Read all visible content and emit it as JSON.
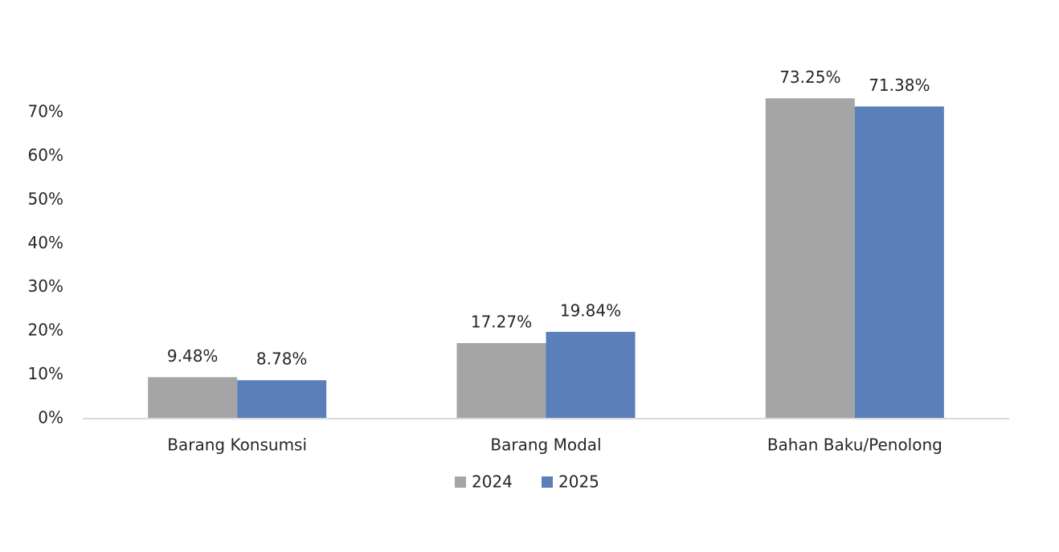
{
  "chart_data": {
    "type": "bar",
    "categories": [
      "Barang Konsumsi",
      "Barang Modal",
      "Bahan Baku/Penolong"
    ],
    "series": [
      {
        "name": "2024",
        "color": "#a5a5a5",
        "values": [
          9.48,
          17.27,
          73.25
        ],
        "value_labels": [
          "9.48%",
          "17.27%",
          "73.25%"
        ]
      },
      {
        "name": "2025",
        "color": "#5b7fb8",
        "values": [
          8.78,
          19.84,
          71.38
        ],
        "value_labels": [
          "8.78%",
          "19.84%",
          "71.38%"
        ]
      }
    ],
    "ylim": [
      0,
      80
    ],
    "yticks": [
      {
        "value": 0,
        "label": "0%"
      },
      {
        "value": 10,
        "label": "10%"
      },
      {
        "value": 20,
        "label": "20%"
      },
      {
        "value": 30,
        "label": "30%"
      },
      {
        "value": 40,
        "label": "40%"
      },
      {
        "value": 50,
        "label": "50%"
      },
      {
        "value": 60,
        "label": "60%"
      },
      {
        "value": 70,
        "label": "70%"
      }
    ],
    "grid": false,
    "legend": "bottom"
  }
}
